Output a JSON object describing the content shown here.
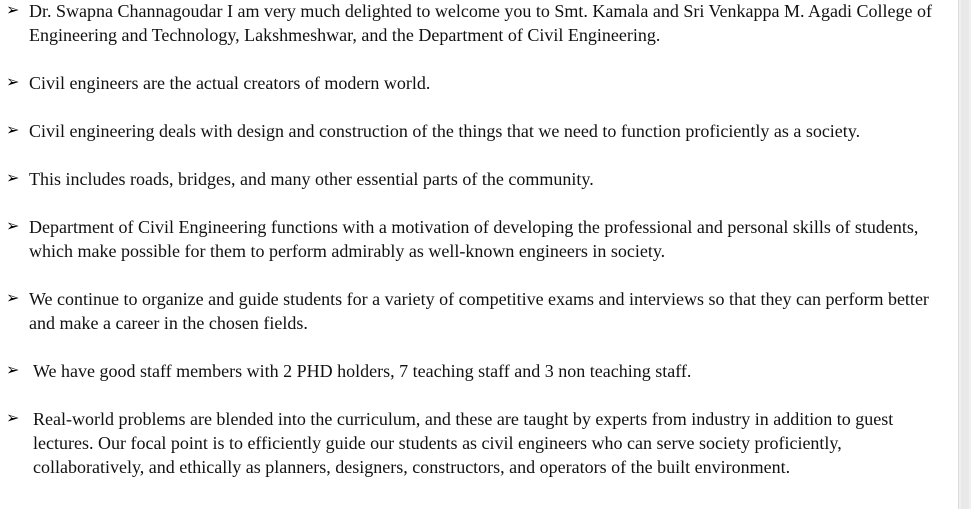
{
  "bullet_marker": "➢",
  "bullets": [
    {
      "text": "Dr. Swapna Channagoudar I am very much delighted to welcome you to Smt. Kamala and Sri Venkappa M. Agadi College of Engineering and Technology, Lakshmeshwar, and the Department of Civil Engineering."
    },
    {
      "text": "Civil engineers are the actual creators of modern world."
    },
    {
      "text": "Civil engineering deals with design and construction of the things that we need to function proficiently as a society."
    },
    {
      "text": "This includes roads, bridges, and many other essential parts of the community."
    },
    {
      "text": "Department of Civil Engineering functions with a motivation of developing the professional and personal skills of students, which make possible for them to perform admirably as well-known engineers in society."
    },
    {
      "text": "We continue to organize and guide students for a variety of competitive exams and interviews so that they can perform better and make a career in the chosen fields."
    },
    {
      "text": "We have good staff members with 2 PHD holders, 7 teaching staff and 3 non teaching staff."
    },
    {
      "text": "Real-world problems are blended into the curriculum, and these are taught by experts from industry in addition to guest lectures. Our focal point is to efficiently guide our students as civil engineers who can serve society proficiently, collaboratively, and ethically as planners, designers, constructors, and operators of the built environment."
    }
  ]
}
